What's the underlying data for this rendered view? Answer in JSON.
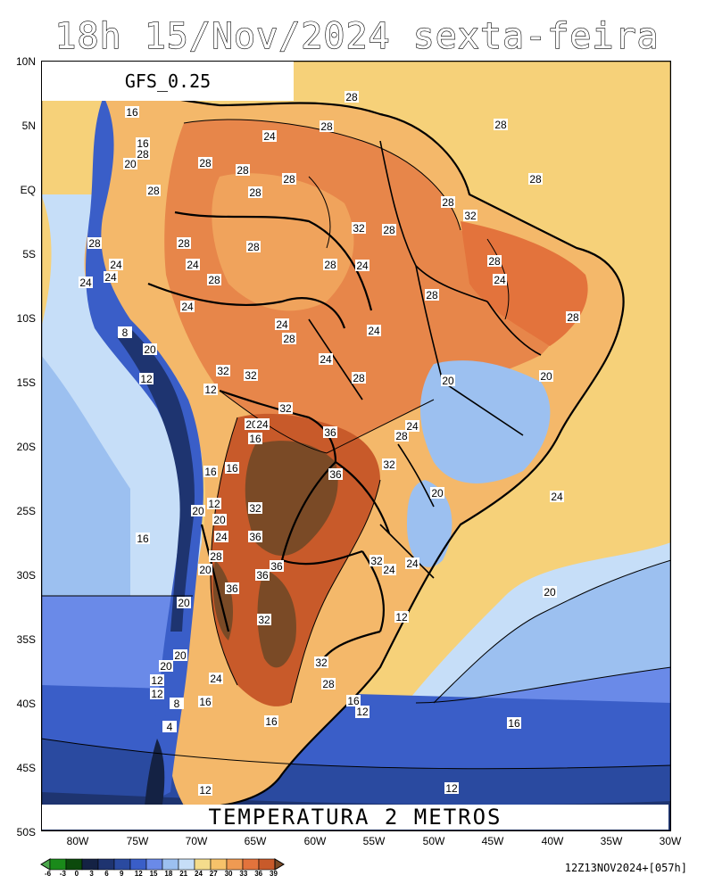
{
  "title": "18h 15/Nov/2024 sexta-feira",
  "model": "GFS_0.25",
  "field": "TEMPERATURA 2 METROS",
  "run": "12Z13NOV2024+[057h]",
  "lat_labels": [
    "10N",
    "5N",
    "EQ",
    "5S",
    "10S",
    "15S",
    "20S",
    "25S",
    "30S",
    "35S",
    "40S",
    "45S",
    "50S"
  ],
  "lon_labels": [
    "80W",
    "75W",
    "70W",
    "65W",
    "60W",
    "55W",
    "50W",
    "45W",
    "40W",
    "35W",
    "30W"
  ],
  "colorbar": {
    "labels": [
      "-6",
      "-3",
      "0",
      "3",
      "6",
      "9",
      "12",
      "15",
      "18",
      "21",
      "24",
      "27",
      "30",
      "33",
      "36",
      "39"
    ],
    "colors": [
      "#4ca84c",
      "#1a8a1a",
      "#0c4a0c",
      "#142244",
      "#1e3470",
      "#2a4aa0",
      "#3a5ec8",
      "#6a8ae8",
      "#9cc0f0",
      "#c6def8",
      "#f4dc8c",
      "#f6c26a",
      "#ef9a52",
      "#e3733c",
      "#c85a2a",
      "#7a4a26"
    ]
  },
  "contour_labels": [
    "28",
    "28",
    "16",
    "24",
    "28",
    "28",
    "16",
    "28",
    "20",
    "28",
    "28",
    "28",
    "28",
    "28",
    "28",
    "32",
    "32",
    "28",
    "28",
    "28",
    "24",
    "28",
    "24",
    "28",
    "28",
    "24",
    "24",
    "24",
    "28",
    "28",
    "24",
    "24",
    "24",
    "28",
    "8",
    "28",
    "20",
    "24",
    "12",
    "32",
    "32",
    "12",
    "24",
    "28",
    "20",
    "20",
    "20",
    "24",
    "16",
    "32",
    "36",
    "28",
    "24",
    "32",
    "16",
    "16",
    "36",
    "20",
    "12",
    "20",
    "24",
    "32",
    "20",
    "24",
    "36",
    "16",
    "24",
    "28",
    "32",
    "24",
    "20",
    "36",
    "36",
    "36",
    "20",
    "20",
    "32",
    "12",
    "20",
    "32",
    "24",
    "28",
    "16",
    "12",
    "16",
    "12",
    "8",
    "16",
    "20",
    "12",
    "4",
    "12",
    "12",
    "12",
    "16"
  ]
}
